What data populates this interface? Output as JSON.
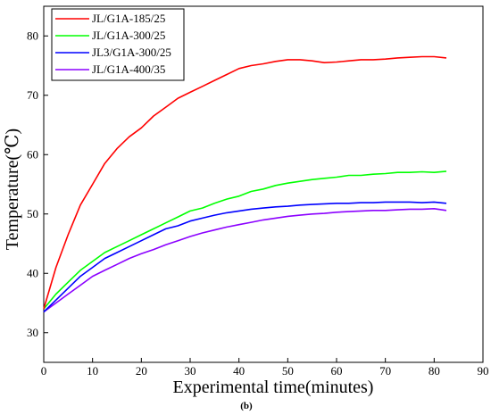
{
  "chart_data": {
    "type": "line",
    "xlabel": "Experimental time(minutes)",
    "ylabel": "Temperature(℃)",
    "caption": "(b)",
    "xlim": [
      0,
      90
    ],
    "ylim": [
      25,
      85
    ],
    "xticks": [
      0,
      10,
      20,
      30,
      40,
      50,
      60,
      70,
      80,
      90
    ],
    "yticks": [
      30,
      40,
      50,
      60,
      70,
      80
    ],
    "legend_position": "top-left",
    "grid": false,
    "x": [
      0,
      2.5,
      5,
      7.5,
      10,
      12.5,
      15,
      17.5,
      20,
      22.5,
      25,
      27.5,
      30,
      32.5,
      35,
      37.5,
      40,
      42.5,
      45,
      47.5,
      50,
      52.5,
      55,
      57.5,
      60,
      62.5,
      65,
      67.5,
      70,
      72.5,
      75,
      77.5,
      80,
      82.5
    ],
    "series": [
      {
        "name": "JL/G1A-185/25",
        "color": "#ff0000",
        "values": [
          34,
          41,
          46.5,
          51.5,
          55,
          58.5,
          61,
          63,
          64.5,
          66.5,
          68,
          69.5,
          70.5,
          71.5,
          72.5,
          73.5,
          74.5,
          75,
          75.3,
          75.7,
          76,
          76,
          75.8,
          75.5,
          75.6,
          75.8,
          76,
          76,
          76.1,
          76.3,
          76.4,
          76.5,
          76.5,
          76.3
        ]
      },
      {
        "name": "JL/G1A-300/25",
        "color": "#00ff00",
        "values": [
          34,
          36.5,
          38.5,
          40.5,
          42,
          43.5,
          44.5,
          45.5,
          46.5,
          47.5,
          48.5,
          49.5,
          50.5,
          51,
          51.8,
          52.5,
          53,
          53.8,
          54.2,
          54.8,
          55.2,
          55.5,
          55.8,
          56,
          56.2,
          56.5,
          56.5,
          56.7,
          56.8,
          57,
          57,
          57.1,
          57,
          57.2
        ]
      },
      {
        "name": "JL3/G1A-300/25",
        "color": "#0000ff",
        "values": [
          33.5,
          35.5,
          37.5,
          39.5,
          41,
          42.5,
          43.5,
          44.5,
          45.5,
          46.5,
          47.5,
          48,
          48.8,
          49.3,
          49.8,
          50.2,
          50.5,
          50.8,
          51,
          51.2,
          51.3,
          51.5,
          51.6,
          51.7,
          51.8,
          51.8,
          51.9,
          51.9,
          52,
          52,
          52,
          51.9,
          52,
          51.8
        ]
      },
      {
        "name": "JL/G1A-400/35",
        "color": "#8b00ff",
        "values": [
          33.5,
          35,
          36.5,
          38,
          39.5,
          40.5,
          41.5,
          42.5,
          43.3,
          44,
          44.8,
          45.5,
          46.2,
          46.8,
          47.3,
          47.8,
          48.2,
          48.6,
          49,
          49.3,
          49.6,
          49.8,
          50,
          50.1,
          50.3,
          50.4,
          50.5,
          50.6,
          50.6,
          50.7,
          50.8,
          50.8,
          50.9,
          50.6
        ]
      }
    ]
  }
}
